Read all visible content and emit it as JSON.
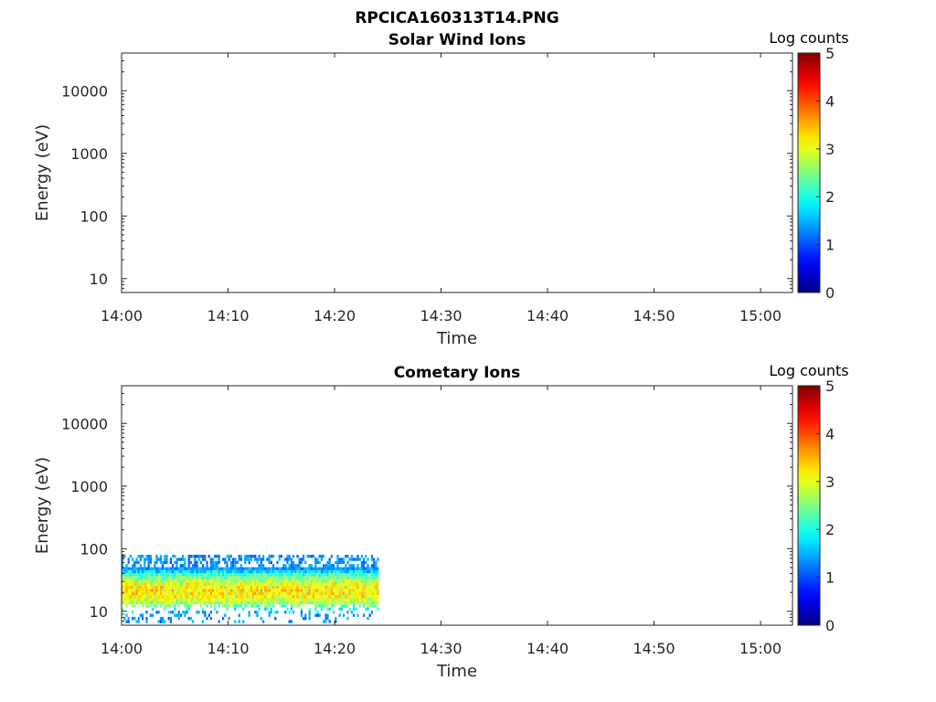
{
  "figure": {
    "title": "RPCICA160313T14.PNG"
  },
  "chart_data": [
    {
      "type": "heatmap",
      "title": "Solar Wind Ions",
      "xlabel": "Time",
      "ylabel": "Energy (eV)",
      "x_ticks": [
        "14:00",
        "14:10",
        "14:20",
        "14:30",
        "14:40",
        "14:50",
        "15:00"
      ],
      "xlim": [
        "14:00",
        "15:03"
      ],
      "y_scale": "log",
      "y_ticks": [
        10,
        100,
        1000,
        10000
      ],
      "y_tick_labels": [
        "10",
        "100",
        "1000",
        "10000"
      ],
      "ylim": [
        6,
        40000
      ],
      "colorbar": {
        "label": "Log counts",
        "range": [
          0,
          5
        ],
        "ticks": [
          "0",
          "1",
          "2",
          "3",
          "4",
          "5"
        ],
        "colormap": "jet"
      },
      "data": []
    },
    {
      "type": "heatmap",
      "title": "Cometary Ions",
      "xlabel": "Time",
      "ylabel": "Energy (eV)",
      "x_ticks": [
        "14:00",
        "14:10",
        "14:20",
        "14:30",
        "14:40",
        "14:50",
        "15:00"
      ],
      "xlim": [
        "14:00",
        "15:03"
      ],
      "y_scale": "log",
      "y_ticks": [
        10,
        100,
        1000,
        10000
      ],
      "y_tick_labels": [
        "10",
        "100",
        "1000",
        "10000"
      ],
      "ylim": [
        6,
        40000
      ],
      "colorbar": {
        "label": "Log counts",
        "range": [
          0,
          5
        ],
        "ticks": [
          "0",
          "1",
          "2",
          "3",
          "4",
          "5"
        ],
        "colormap": "jet"
      },
      "data": [
        {
          "time_start": "14:00",
          "time_end": "14:24",
          "energy_min": 7,
          "energy_max": 80,
          "peak_energy": 22,
          "peak_log_counts": 3.2,
          "edge_log_counts": 1.0
        }
      ]
    }
  ]
}
